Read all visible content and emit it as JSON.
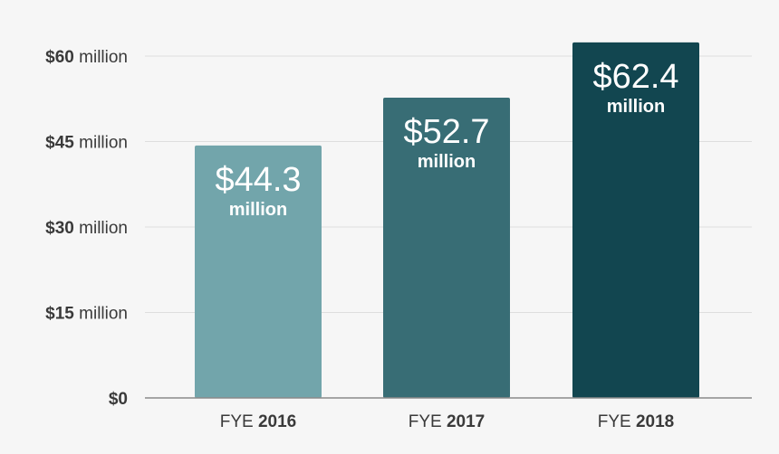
{
  "chart_data": {
    "type": "bar",
    "title": "",
    "xlabel": "",
    "ylabel": "",
    "ylim": [
      0,
      60
    ],
    "grid": true,
    "categories": [
      {
        "prefix": "FYE",
        "year": "2016"
      },
      {
        "prefix": "FYE",
        "year": "2017"
      },
      {
        "prefix": "FYE",
        "year": "2018"
      }
    ],
    "values": [
      44.3,
      52.7,
      62.4
    ],
    "bar_labels": [
      {
        "value": "$44.3",
        "unit": "million"
      },
      {
        "value": "$52.7",
        "unit": "million"
      },
      {
        "value": "$62.4",
        "unit": "million"
      }
    ],
    "colors": [
      "#72a5ab",
      "#386d75",
      "#124650"
    ],
    "y_ticks": [
      {
        "value": 0,
        "amount": "$0",
        "unit": ""
      },
      {
        "value": 15,
        "amount": "$15",
        "unit": "million"
      },
      {
        "value": 30,
        "amount": "$30",
        "unit": "million"
      },
      {
        "value": 45,
        "amount": "$45",
        "unit": "million"
      },
      {
        "value": 60,
        "amount": "$60",
        "unit": "million"
      }
    ],
    "text_color": "#3a3a3a",
    "grid_color": "#dedede",
    "axis_color": "#8a8a8a"
  }
}
